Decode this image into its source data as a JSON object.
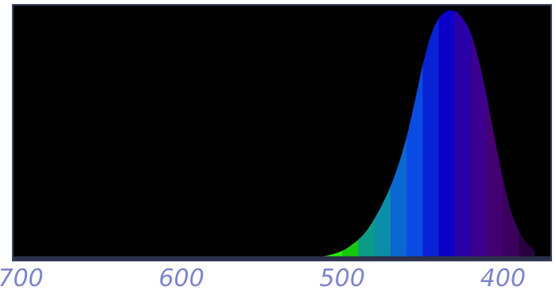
{
  "chart_data": {
    "type": "area",
    "title": "",
    "xlabel": "",
    "ylabel": "",
    "x_axis": {
      "reversed": true,
      "xlim": [
        370,
        705
      ],
      "ticks": [
        {
          "value": 700,
          "label": "700"
        },
        {
          "value": 600,
          "label": "600"
        },
        {
          "value": 500,
          "label": "500"
        },
        {
          "value": 400,
          "label": "400"
        }
      ]
    },
    "ylim": [
      0,
      1
    ],
    "grid": false,
    "background": "#000000",
    "frame_color": "#3f4360",
    "baseline_color": "#2b2f4a",
    "series": [
      {
        "x": [
          380,
          385,
          390,
          395,
          400,
          405,
          410,
          415,
          420,
          425,
          430,
          435,
          440,
          445,
          450,
          455,
          460,
          465,
          470,
          475,
          480,
          485,
          490,
          495,
          500,
          505,
          510,
          515,
          520,
          525,
          530
        ],
        "y": [
          0.03,
          0.06,
          0.11,
          0.19,
          0.32,
          0.48,
          0.65,
          0.8,
          0.91,
          0.97,
          1.0,
          1.0,
          0.97,
          0.9,
          0.78,
          0.63,
          0.49,
          0.38,
          0.29,
          0.22,
          0.16,
          0.11,
          0.075,
          0.05,
          0.03,
          0.018,
          0.01,
          0.005,
          0.002,
          0.001,
          0.0
        ]
      }
    ],
    "bands": [
      {
        "from": 520,
        "to": 530,
        "color": "#3fa000"
      },
      {
        "from": 510,
        "to": 520,
        "color": "#3fd400"
      },
      {
        "from": 500,
        "to": 510,
        "color": "#24ee00"
      },
      {
        "from": 490,
        "to": 500,
        "color": "#17c80f"
      },
      {
        "from": 480,
        "to": 490,
        "color": "#0b9c88"
      },
      {
        "from": 470,
        "to": 480,
        "color": "#0a8ea8"
      },
      {
        "from": 460,
        "to": 470,
        "color": "#0a68d2"
      },
      {
        "from": 450,
        "to": 460,
        "color": "#0a4ce3"
      },
      {
        "from": 440,
        "to": 450,
        "color": "#0a22d6"
      },
      {
        "from": 430,
        "to": 440,
        "color": "#0a00c6"
      },
      {
        "from": 420,
        "to": 430,
        "color": "#2a00a8"
      },
      {
        "from": 410,
        "to": 420,
        "color": "#3b008e"
      },
      {
        "from": 400,
        "to": 410,
        "color": "#440070"
      },
      {
        "from": 390,
        "to": 400,
        "color": "#3a005c"
      },
      {
        "from": 375,
        "to": 390,
        "color": "#280040"
      }
    ]
  }
}
